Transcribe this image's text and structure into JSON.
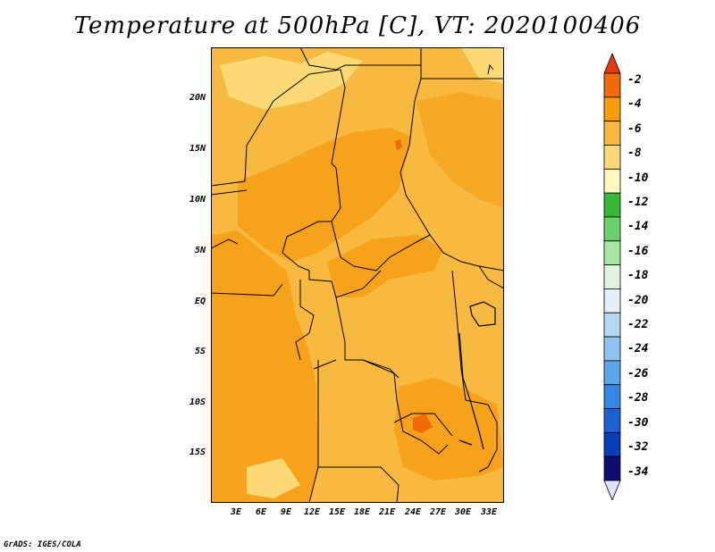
{
  "title": "Temperature at 500hPa [C], VT: 2020100406",
  "credit": "GrADS: IGES/COLA",
  "lat_ticks": [
    "20N",
    "15N",
    "10N",
    "5N",
    "EQ",
    "5S",
    "10S",
    "15S"
  ],
  "lon_ticks": [
    "3E",
    "6E",
    "9E",
    "12E",
    "15E",
    "18E",
    "21E",
    "24E",
    "27E",
    "30E",
    "33E"
  ],
  "colorbar": {
    "labels": [
      "-2",
      "-4",
      "-6",
      "-8",
      "-10",
      "-12",
      "-14",
      "-16",
      "-18",
      "-20",
      "-22",
      "-24",
      "-26",
      "-28",
      "-30",
      "-32",
      "-34"
    ],
    "colors": [
      "#e8380e",
      "#f46a0a",
      "#f69d0b",
      "#f8b941",
      "#fbda76",
      "#fff6bf",
      "#36b839",
      "#6bd26b",
      "#a5e6a0",
      "#dff5e0",
      "#e1f0fb",
      "#b5d8f5",
      "#8ec2f0",
      "#5da6ea",
      "#3685e0",
      "#1e5fd3",
      "#0a3eb8",
      "#0b0e6e",
      "#e1e1fa"
    ]
  },
  "map_colors": {
    "light": "#f8b941",
    "medium": "#f6a31b",
    "dark": "#f46a0a",
    "pale": "#fbda76",
    "border": "#000000"
  }
}
